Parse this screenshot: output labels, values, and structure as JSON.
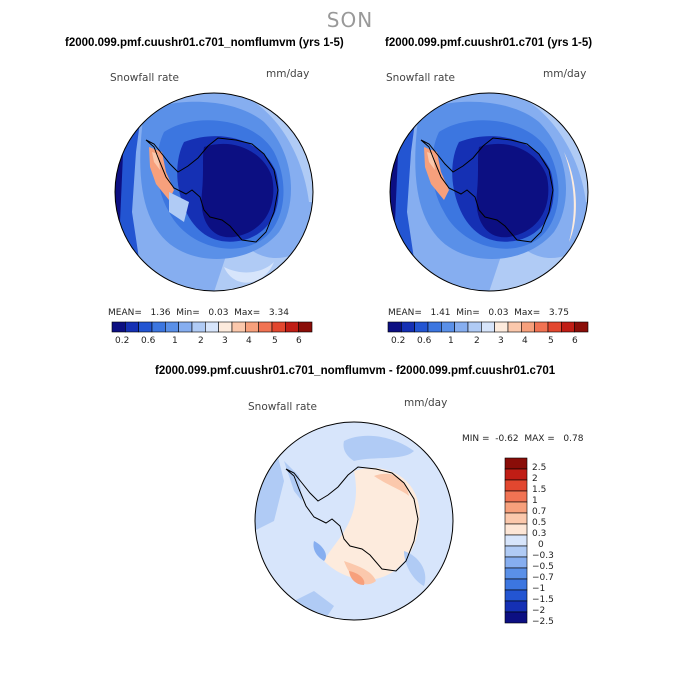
{
  "figure_title": "SON",
  "panels": [
    {
      "title": "f2000.099.pmf.cuushr01.c701_nomflumvm (yrs 1-5)",
      "variable": "Snowfall rate",
      "units": "mm/day",
      "stats": {
        "mean_label": "MEAN=",
        "mean": "1.36",
        "min_label": "Min=",
        "min": "0.03",
        "max_label": "Max=",
        "max": "3.34"
      }
    },
    {
      "title": "f2000.099.pmf.cuushr01.c701 (yrs 1-5)",
      "variable": "Snowfall rate",
      "units": "mm/day",
      "stats": {
        "mean_label": "MEAN=",
        "mean": "1.41",
        "min_label": "Min=",
        "min": "0.03",
        "max_label": "Max=",
        "max": "3.75"
      }
    },
    {
      "title": "f2000.099.pmf.cuushr01.c701_nomflumvm - f2000.099.pmf.cuushr01.c701",
      "variable": "Snowfall rate",
      "units": "mm/day",
      "stats": {
        "min_label": "MIN =",
        "min": "-0.62",
        "max_label": "MAX =",
        "max": "0.78"
      }
    }
  ],
  "horizontal_colorbar": {
    "colors": [
      "#0c0f82",
      "#1530b4",
      "#2355d2",
      "#3c76e0",
      "#5a90e8",
      "#86aef0",
      "#b0cbf5",
      "#d7e5fb",
      "#fdebdd",
      "#fbc8ac",
      "#f7a07c",
      "#f17353",
      "#e2472f",
      "#c01d15",
      "#8a0d08"
    ],
    "tick_labels": [
      "0.2",
      "0.6",
      "1",
      "2",
      "3",
      "4",
      "5",
      "6"
    ]
  },
  "vertical_colorbar": {
    "colors": [
      "#8a0d08",
      "#c01d15",
      "#e2472f",
      "#f17353",
      "#f7a07c",
      "#fbc8ac",
      "#fde6d6",
      "#d7e5fb",
      "#b0cbf5",
      "#86aef0",
      "#5a90e8",
      "#3c76e0",
      "#2355d2",
      "#1530b4",
      "#0c0f82"
    ],
    "tick_labels": [
      "2.5",
      "2",
      "1.5",
      "1",
      "0.7",
      "0.5",
      "0.3",
      "0",
      "−0.3",
      "−0.5",
      "−0.7",
      "−1",
      "−1.5",
      "−2",
      "−2.5"
    ]
  }
}
